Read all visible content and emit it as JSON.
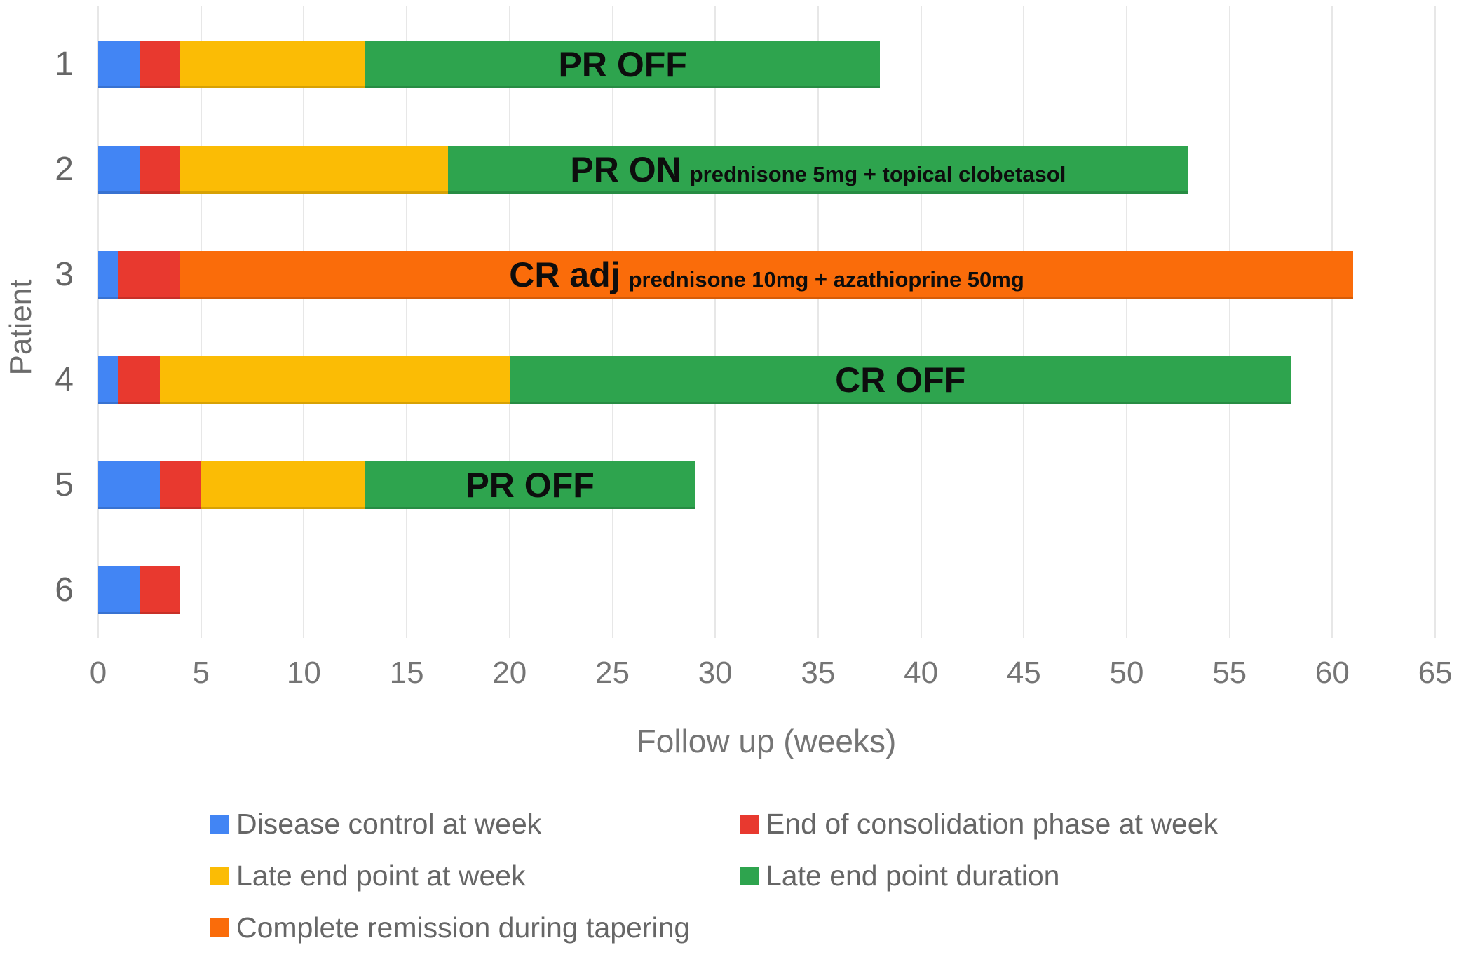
{
  "chart_data": {
    "type": "bar",
    "orientation": "horizontal",
    "stacked": true,
    "xlabel": "Follow up (weeks)",
    "ylabel": "Patient",
    "xlim": [
      0,
      65
    ],
    "x_ticks": [
      0,
      5,
      10,
      15,
      20,
      25,
      30,
      35,
      40,
      45,
      50,
      55,
      60,
      65
    ],
    "grid": true,
    "categories": [
      "1",
      "2",
      "3",
      "4",
      "5",
      "6"
    ],
    "series": [
      {
        "name": "Disease control at week",
        "color": "#4285F4",
        "values": [
          2,
          2,
          1,
          1,
          3,
          2
        ]
      },
      {
        "name": "End of consolidation phase at week",
        "color": "#E8392F",
        "values": [
          2,
          2,
          3,
          2,
          2,
          2
        ]
      },
      {
        "name": "Late end point at week",
        "color": "#FBBC05",
        "values": [
          9,
          13,
          0,
          17,
          8,
          0
        ]
      },
      {
        "name": "Late end point duration",
        "color": "#2EA44E",
        "values": [
          25,
          36,
          0,
          38,
          16,
          0
        ]
      },
      {
        "name": "Complete remission during tapering",
        "color": "#FA6C0A",
        "values": [
          0,
          0,
          57,
          0,
          0,
          0
        ]
      }
    ],
    "bar_totals_weeks": [
      38,
      53,
      61,
      58,
      29,
      4
    ],
    "annotations": [
      {
        "category": "1",
        "main": "PR OFF",
        "sub": ""
      },
      {
        "category": "2",
        "main": "PR ON",
        "sub": "prednisone 5mg + topical clobetasol"
      },
      {
        "category": "3",
        "main": "CR adj",
        "sub": "prednisone 10mg + azathioprine 50mg"
      },
      {
        "category": "4",
        "main": "CR OFF",
        "sub": ""
      },
      {
        "category": "5",
        "main": "PR OFF",
        "sub": ""
      },
      {
        "category": "6",
        "main": "",
        "sub": ""
      }
    ],
    "legend_position": "bottom",
    "legend_columns": 2,
    "legend": [
      {
        "label": "Disease control at week",
        "color": "#4285F4"
      },
      {
        "label": "End of consolidation phase at week",
        "color": "#E8392F"
      },
      {
        "label": "Late end point at week",
        "color": "#FBBC05"
      },
      {
        "label": "Late end point duration",
        "color": "#2EA44E"
      },
      {
        "label": "Complete remission during tapering",
        "color": "#FA6C0A"
      }
    ]
  }
}
